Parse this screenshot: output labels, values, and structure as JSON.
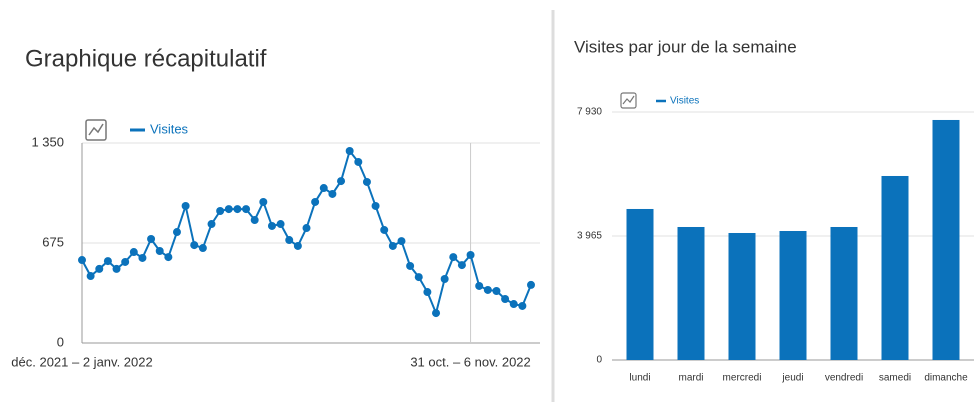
{
  "chart_data": [
    {
      "type": "line",
      "title": "Graphique récapitulatif",
      "categories": [
        "déc. 2021 – 2 janv. 2022",
        null,
        null,
        null,
        null,
        null,
        null,
        null,
        null,
        null,
        null,
        null,
        null,
        null,
        null,
        null,
        null,
        null,
        null,
        null,
        null,
        null,
        null,
        null,
        null,
        null,
        null,
        null,
        null,
        null,
        null,
        null,
        null,
        null,
        null,
        null,
        null,
        null,
        null,
        null,
        null,
        null,
        null,
        null,
        null,
        "31 oct. – 6 nov. 2022",
        null,
        null,
        null,
        null,
        null,
        null,
        null
      ],
      "series": [
        {
          "name": "Visites",
          "color": "#0b72bb",
          "values": [
            560,
            452,
            500,
            553,
            500,
            547,
            614,
            574,
            702,
            621,
            580,
            749,
            925,
            661,
            641,
            803,
            891,
            904,
            904,
            904,
            830,
            952,
            790,
            803,
            695,
            655,
            776,
            952,
            1046,
            1006,
            1093,
            1296,
            1222,
            1087,
            925,
            763,
            655,
            688,
            520,
            445,
            344,
            202,
            432,
            580,
            526,
            594,
            385,
            358,
            351,
            297,
            263,
            250,
            392
          ]
        }
      ],
      "ylim": [
        0,
        1350
      ],
      "yticks": [
        0,
        {
          "value": 675,
          "label": "675"
        },
        {
          "value": 1350,
          "label": "1 350"
        }
      ],
      "grid": true
    },
    {
      "type": "bar",
      "title": "Visites par jour de la semaine",
      "categories": [
        "lundi",
        "mardi",
        "mercredi",
        "jeudi",
        "vendredi",
        "samedi",
        "dimanche"
      ],
      "series": [
        {
          "name": "Visites",
          "color": "#0b72bb",
          "values": [
            4829,
            4253,
            4061,
            4125,
            4253,
            5884,
            7675
          ]
        }
      ],
      "ylim": [
        0,
        7930
      ],
      "yticks": [
        0,
        {
          "value": 3965,
          "label": "3 965"
        },
        {
          "value": 7930,
          "label": "7 930"
        }
      ],
      "grid": true
    }
  ]
}
